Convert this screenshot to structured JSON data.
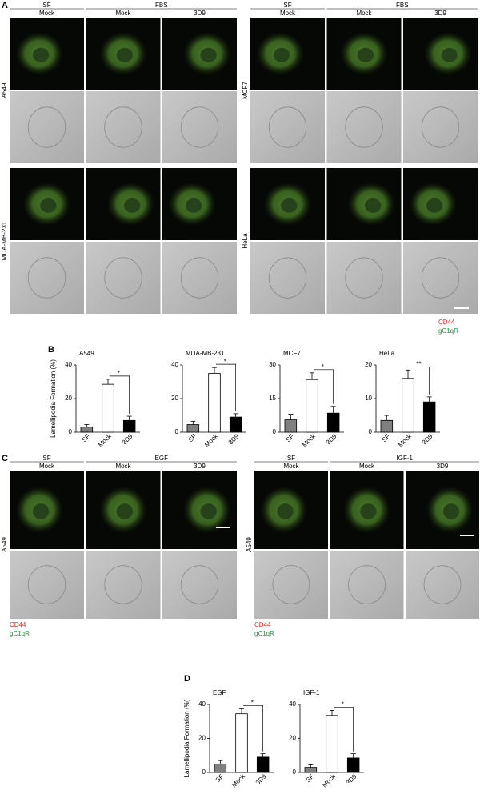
{
  "panel_labels": [
    "A",
    "B",
    "C",
    "D"
  ],
  "panel_a": {
    "left": {
      "group": "SF",
      "treatment": "FBS",
      "columns": [
        "Mock",
        "Mock",
        "3D9"
      ],
      "rows": [
        "A549",
        "MDA-MB-231"
      ]
    },
    "right": {
      "group": "SF",
      "treatment": "FBS",
      "columns": [
        "Mock",
        "Mock",
        "3D9"
      ],
      "rows": [
        "MCF7",
        "HeLa"
      ]
    },
    "legend": [
      "CD44",
      "gC1qR"
    ]
  },
  "panel_c": {
    "left": {
      "group": "SF",
      "treatment": "EGF",
      "columns": [
        "Mock",
        "Mock",
        "3D9"
      ],
      "rows": [
        "A549"
      ],
      "legend": [
        "CD44",
        "gC1qR"
      ]
    },
    "right": {
      "group": "SF",
      "treatment": "IGF-1",
      "columns": [
        "Mock",
        "Mock",
        "3D9"
      ],
      "rows": [
        "A549"
      ],
      "legend": [
        "CD44",
        "gC1qR"
      ]
    }
  },
  "chart_data": [
    {
      "type": "bar",
      "title": "A549",
      "ylabel": "Lamellipodia Formation (%)",
      "categories": [
        "SF",
        "Mock",
        "3D9"
      ],
      "values": [
        3,
        28.5,
        7
      ],
      "errors": [
        1.5,
        3,
        2.5
      ],
      "colors": [
        "#808080",
        "#ffffff",
        "#000000"
      ],
      "ylim": [
        0,
        40
      ],
      "yticks": [
        0,
        20,
        40
      ],
      "annotation": "*"
    },
    {
      "type": "bar",
      "title": "MDA-MB-231",
      "categories": [
        "SF",
        "Mock",
        "3D9"
      ],
      "values": [
        4.5,
        35,
        9
      ],
      "errors": [
        2,
        3.5,
        2
      ],
      "colors": [
        "#808080",
        "#ffffff",
        "#000000"
      ],
      "ylim": [
        0,
        40
      ],
      "yticks": [
        0,
        20,
        40
      ],
      "annotation": "*"
    },
    {
      "type": "bar",
      "title": "MCF7",
      "categories": [
        "SF",
        "Mock",
        "3D9"
      ],
      "values": [
        5.5,
        23.5,
        8.5
      ],
      "errors": [
        2.5,
        3,
        3
      ],
      "colors": [
        "#808080",
        "#ffffff",
        "#000000"
      ],
      "ylim": [
        0,
        30
      ],
      "yticks": [
        0,
        15,
        30
      ],
      "annotation": "*"
    },
    {
      "type": "bar",
      "title": "HeLa",
      "categories": [
        "SF",
        "Mock",
        "3D9"
      ],
      "values": [
        3.5,
        16,
        9
      ],
      "errors": [
        1.5,
        2.5,
        1.5
      ],
      "colors": [
        "#808080",
        "#ffffff",
        "#000000"
      ],
      "ylim": [
        0,
        20
      ],
      "yticks": [
        0,
        10,
        20
      ],
      "annotation": "**"
    },
    {
      "type": "bar",
      "title": "EGF",
      "ylabel": "Lamellipodia Formation (%)",
      "categories": [
        "SF",
        "Mock",
        "3D9"
      ],
      "values": [
        5,
        34.5,
        9
      ],
      "errors": [
        2,
        3,
        2
      ],
      "colors": [
        "#808080",
        "#ffffff",
        "#000000"
      ],
      "ylim": [
        0,
        40
      ],
      "yticks": [
        0,
        20,
        40
      ],
      "annotation": "*"
    },
    {
      "type": "bar",
      "title": "IGF-1",
      "categories": [
        "SF",
        "Mock",
        "3D9"
      ],
      "values": [
        3,
        33.5,
        8.5
      ],
      "errors": [
        1.5,
        3,
        2.5
      ],
      "colors": [
        "#808080",
        "#ffffff",
        "#000000"
      ],
      "ylim": [
        0,
        40
      ],
      "yticks": [
        0,
        20,
        40
      ],
      "annotation": "*"
    }
  ]
}
